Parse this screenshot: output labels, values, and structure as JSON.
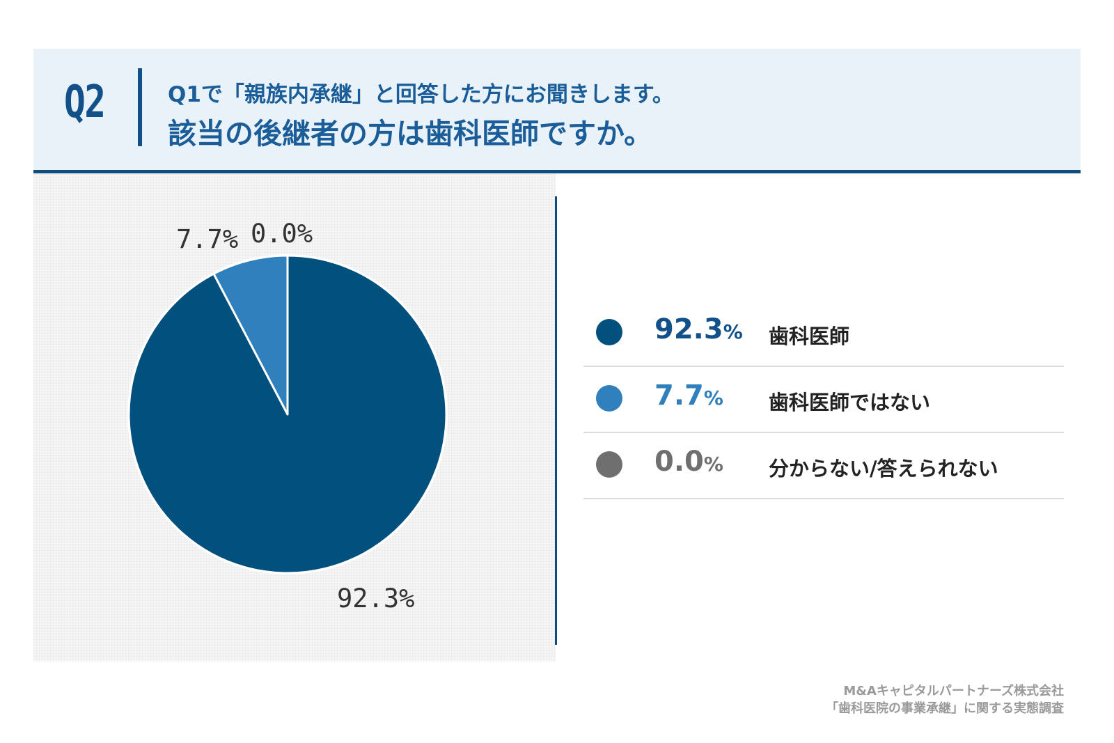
{
  "header": {
    "q_number": "Q2",
    "line1": "Q1で「親族内承継」と回答した方にお聞きします。",
    "line2": "該当の後継者の方は歯科医師ですか。"
  },
  "chart_data": {
    "type": "pie",
    "start_angle_deg": 0,
    "direction": "clockwise",
    "slices": [
      {
        "label": "歯科医師",
        "value": 92.3,
        "value_text": "92.3",
        "pie_label": "92.3%",
        "color": "#02507e"
      },
      {
        "label": "歯科医師ではない",
        "value": 7.7,
        "value_text": "7.7",
        "pie_label": "7.7%",
        "color": "#2f80bd"
      },
      {
        "label": "分からない/答えられない",
        "value": 0.0,
        "value_text": "0.0",
        "pie_label": "0.0%",
        "color": "#6f6f6f"
      }
    ],
    "legend_placement": "right"
  },
  "legend": {
    "percent_sign": "%",
    "rows": [
      {
        "pct": "92.3",
        "label": "歯科医師",
        "color": "#02507e",
        "text_color": "#12508a"
      },
      {
        "pct": "7.7",
        "label": "歯科医師ではない",
        "color": "#2f80bd",
        "text_color": "#2f80bd"
      },
      {
        "pct": "0.0",
        "label": "分からない/答えられない",
        "color": "#6f6f6f",
        "text_color": "#6f6f6f"
      }
    ]
  },
  "source": {
    "line1": "M&Aキャピタルパートナーズ株式会社",
    "line2": "「歯科医院の事業承継」に関する実態調査"
  }
}
